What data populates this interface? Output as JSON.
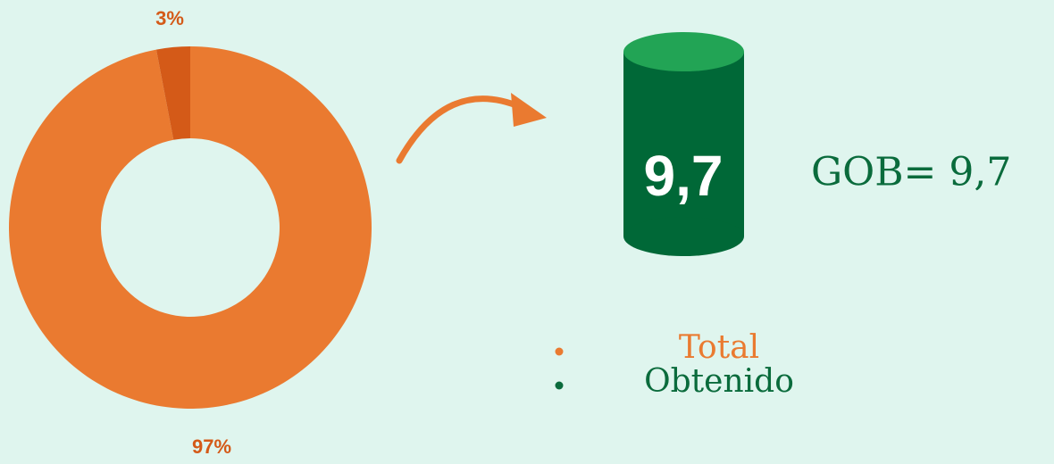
{
  "chart_data": {
    "type": "pie",
    "donut": true,
    "values": [
      97,
      3
    ],
    "value_labels": [
      "97%",
      "3%"
    ],
    "colors": [
      "#ea7a30",
      "#d45a18"
    ],
    "legend": [
      {
        "label": "Total",
        "color": "#ea7a30"
      },
      {
        "label": "Obtenido",
        "color": "#0a6b3c"
      }
    ],
    "cylinder_label": "9,7",
    "annotation": "GOB= 9,7"
  }
}
